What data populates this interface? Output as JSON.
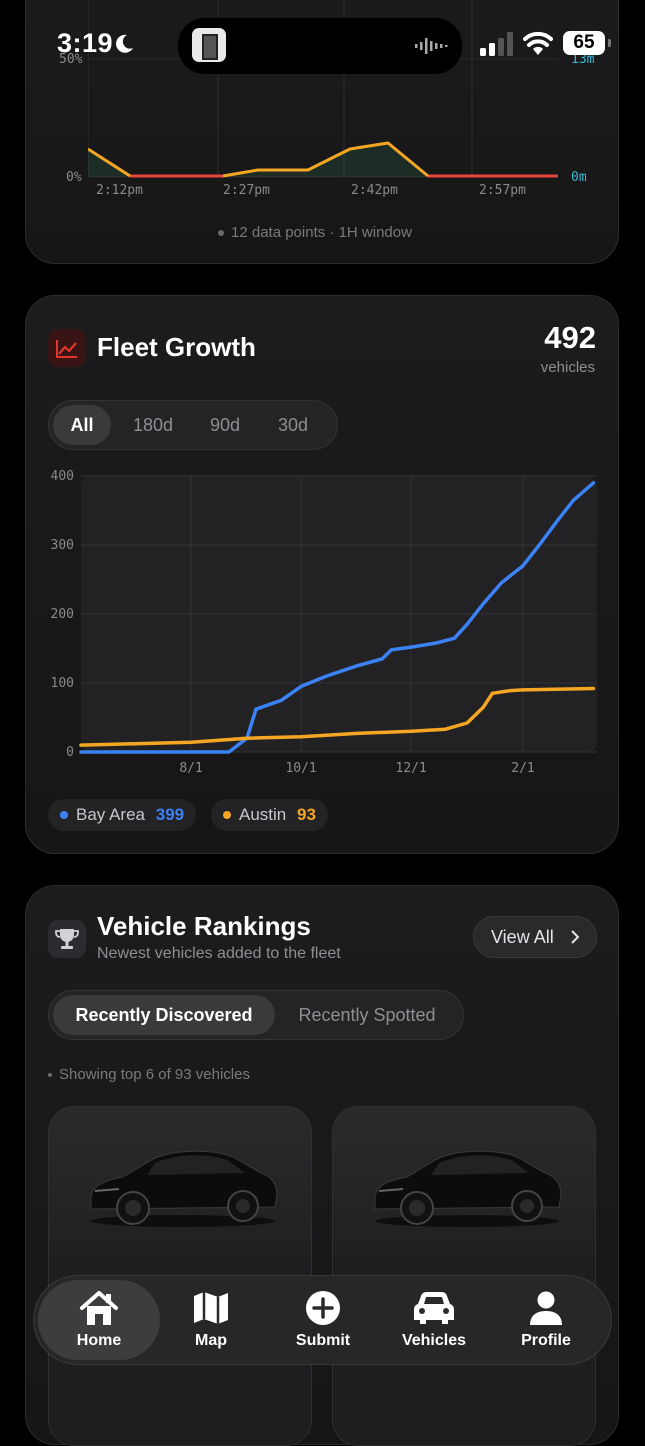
{
  "status_bar": {
    "time": "3:19",
    "battery": "65"
  },
  "activity_chart": {
    "left_ticks": [
      "50%",
      "0%"
    ],
    "right_ticks": [
      "13m",
      "0m"
    ],
    "x_ticks": [
      "2:12pm",
      "2:27pm",
      "2:42pm",
      "2:57pm"
    ],
    "footer": "12 data points · 1H window",
    "colors": {
      "line_active": "#f5a623",
      "line_idle": "#e8453c",
      "right_axis": "#35b8d6"
    }
  },
  "fleet_growth": {
    "title": "Fleet Growth",
    "total": "492",
    "total_unit": "vehicles",
    "ranges": [
      "All",
      "180d",
      "90d",
      "30d"
    ],
    "selected_range": "All",
    "legend": [
      {
        "name": "Bay Area",
        "count": "399",
        "color": "#3b82f6"
      },
      {
        "name": "Austin",
        "count": "93",
        "color": "#f5a623"
      }
    ]
  },
  "chart_data": {
    "type": "line",
    "x_ticks": [
      "8/1",
      "10/1",
      "12/1",
      "2/1"
    ],
    "y_ticks": [
      "0",
      "100",
      "200",
      "300",
      "400"
    ],
    "ylim": [
      0,
      400
    ],
    "series": [
      {
        "name": "Bay Area",
        "color": "#3b82f6",
        "points": [
          [
            "6/1",
            0
          ],
          [
            "7/1",
            0
          ],
          [
            "8/1",
            0
          ],
          [
            "8/22",
            0
          ],
          [
            "9/1",
            20
          ],
          [
            "9/6",
            62
          ],
          [
            "9/20",
            75
          ],
          [
            "10/1",
            95
          ],
          [
            "10/15",
            110
          ],
          [
            "11/1",
            125
          ],
          [
            "11/15",
            135
          ],
          [
            "11/20",
            148
          ],
          [
            "12/1",
            152
          ],
          [
            "12/15",
            158
          ],
          [
            "12/25",
            165
          ],
          [
            "1/1",
            185
          ],
          [
            "1/10",
            215
          ],
          [
            "1/20",
            245
          ],
          [
            "2/1",
            270
          ],
          [
            "2/10",
            300
          ],
          [
            "2/20",
            335
          ],
          [
            "3/1",
            365
          ],
          [
            "3/12",
            390
          ]
        ]
      },
      {
        "name": "Austin",
        "color": "#f5a623",
        "points": [
          [
            "6/1",
            10
          ],
          [
            "7/1",
            12
          ],
          [
            "8/1",
            14
          ],
          [
            "9/1",
            20
          ],
          [
            "10/1",
            22
          ],
          [
            "11/1",
            27
          ],
          [
            "12/1",
            30
          ],
          [
            "12/20",
            33
          ],
          [
            "1/1",
            42
          ],
          [
            "1/10",
            65
          ],
          [
            "1/15",
            85
          ],
          [
            "1/25",
            89
          ],
          [
            "2/1",
            90
          ],
          [
            "3/12",
            92
          ]
        ]
      }
    ]
  },
  "rankings": {
    "title": "Vehicle Rankings",
    "subtitle": "Newest vehicles added to the fleet",
    "view_all": "View All",
    "tabs": [
      "Recently Discovered",
      "Recently Spotted"
    ],
    "selected_tab": "Recently Discovered",
    "showing": "Showing top 6 of 93 vehicles"
  },
  "tabbar": {
    "items": [
      {
        "label": "Home",
        "icon": "house-icon",
        "active": true
      },
      {
        "label": "Map",
        "icon": "map-icon",
        "active": false
      },
      {
        "label": "Submit",
        "icon": "plus-circle-icon",
        "active": false
      },
      {
        "label": "Vehicles",
        "icon": "car-icon",
        "active": false
      },
      {
        "label": "Profile",
        "icon": "person-icon",
        "active": false
      }
    ]
  }
}
